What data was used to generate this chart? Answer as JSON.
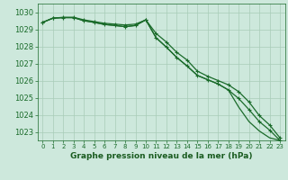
{
  "background_color": "#cde8dc",
  "grid_color": "#a8ccb8",
  "line_color": "#1a6b2a",
  "marker_color": "#1a6b2a",
  "xlabel": "Graphe pression niveau de la mer (hPa)",
  "xlabel_color": "#1a5c20",
  "tick_color": "#1a6b2a",
  "ylim": [
    1022.5,
    1030.5
  ],
  "xlim": [
    -0.5,
    23.5
  ],
  "yticks": [
    1023,
    1024,
    1025,
    1026,
    1027,
    1028,
    1029,
    1030
  ],
  "xticks": [
    0,
    1,
    2,
    3,
    4,
    5,
    6,
    7,
    8,
    9,
    10,
    11,
    12,
    13,
    14,
    15,
    16,
    17,
    18,
    19,
    20,
    21,
    22,
    23
  ],
  "line1": [
    1029.4,
    1029.65,
    1029.7,
    1029.7,
    1029.55,
    1029.45,
    1029.35,
    1029.3,
    1029.25,
    1029.3,
    1029.55,
    1028.75,
    1028.25,
    1027.65,
    1027.2,
    1026.55,
    1026.25,
    1026.0,
    1025.75,
    1025.35,
    1024.75,
    1023.95,
    1023.4,
    1022.65
  ],
  "line2": [
    1029.4,
    1029.65,
    1029.68,
    1029.68,
    1029.5,
    1029.4,
    1029.28,
    1029.22,
    1029.15,
    1029.22,
    1029.55,
    1028.5,
    1027.95,
    1027.35,
    1026.85,
    1026.3,
    1026.05,
    1025.8,
    1025.45,
    1024.95,
    1024.3,
    1023.6,
    1023.1,
    1022.5
  ],
  "line3": [
    1029.4,
    1029.65,
    1029.68,
    1029.68,
    1029.5,
    1029.4,
    1029.28,
    1029.22,
    1029.15,
    1029.22,
    1029.55,
    1028.5,
    1027.95,
    1027.35,
    1026.85,
    1026.3,
    1026.05,
    1025.8,
    1025.45,
    1024.45,
    1023.6,
    1023.05,
    1022.65,
    1022.5
  ],
  "xlabel_fontsize": 6.5,
  "ytick_fontsize": 6,
  "xtick_fontsize": 5,
  "linewidth": 0.9,
  "markersize": 2.5,
  "markeredgewidth": 0.8
}
